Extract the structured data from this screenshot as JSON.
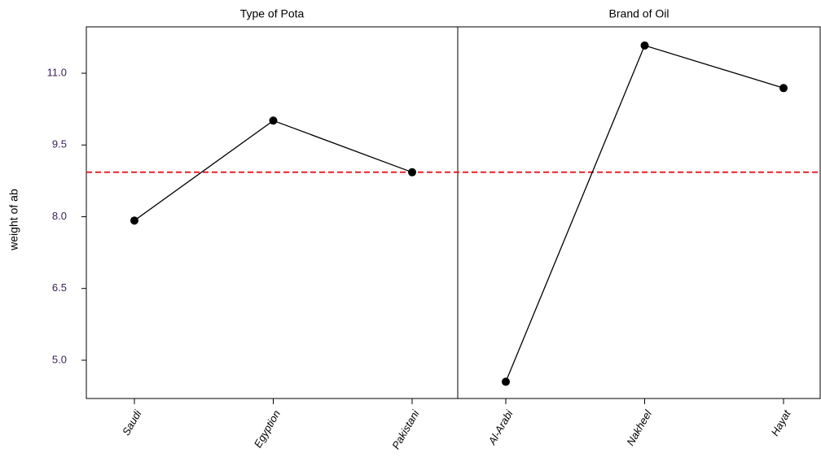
{
  "chart_data": {
    "type": "line",
    "ylabel": "weight of ab",
    "color": "#000000",
    "ylim": [
      4.2,
      11.97
    ],
    "yticks": [
      {
        "value": 5.0,
        "label": "5.0"
      },
      6.5,
      {
        "value": 8.0,
        "label": "8.0"
      },
      9.5,
      {
        "value": 11.0,
        "label": "11.0"
      }
    ],
    "reference_line": {
      "value": 8.93,
      "color": "#e8202a"
    },
    "panels": [
      {
        "title": "Type of Pota",
        "categories": [
          "Saudi",
          "Egyption",
          "Pakistani"
        ],
        "values": [
          7.92,
          10.01,
          8.93
        ]
      },
      {
        "title": "Brand of Oil",
        "categories": [
          "Al-Arabi",
          "Nakheel",
          "Hayat"
        ],
        "values": [
          4.55,
          11.58,
          10.69
        ]
      }
    ]
  }
}
